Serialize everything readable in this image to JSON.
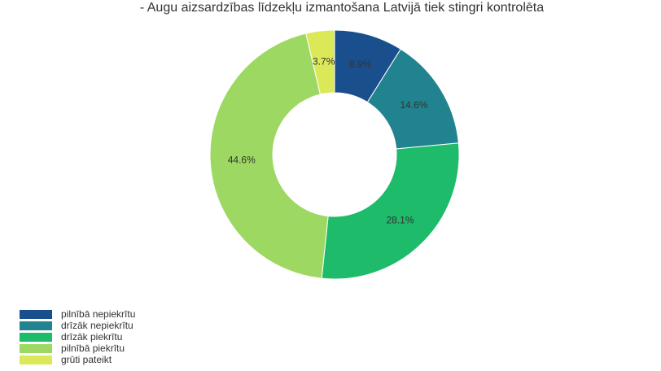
{
  "chart_data": {
    "type": "pie",
    "donut": true,
    "title": "- Augu aizsardzības līdzekļu izmantošana Latvijā tiek stingri kontrolēta",
    "legend_position": "bottom-left",
    "slices": [
      {
        "label": "pilnībā nepiekrītu",
        "value": 8.9,
        "value_label": "8.9%",
        "color": "#1a4f8e"
      },
      {
        "label": "drīzāk nepiekrītu",
        "value": 14.6,
        "value_label": "14.6%",
        "color": "#21838f"
      },
      {
        "label": "drīzāk piekrītu",
        "value": 28.1,
        "value_label": "28.1%",
        "color": "#1dbb6a"
      },
      {
        "label": "pilnībā piekrītu",
        "value": 44.6,
        "value_label": "44.6%",
        "color": "#9dd862"
      },
      {
        "label": "grūti pateikt",
        "value": 3.7,
        "value_label": "3.7%",
        "color": "#dbe858"
      }
    ]
  }
}
